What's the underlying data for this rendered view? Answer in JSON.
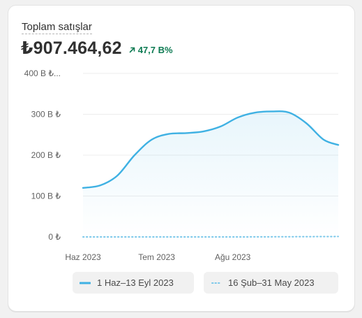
{
  "card": {
    "title": "Toplam satışlar",
    "total": "₺907.464,62",
    "delta": "47,7 B%",
    "delta_icon": "arrow-up-right-icon",
    "accent_color": "#3fb1e3",
    "delta_color": "#0c7a52"
  },
  "chart_data": {
    "type": "area",
    "title": "",
    "xlabel": "",
    "ylabel": "",
    "ylim": [
      0,
      400
    ],
    "y_ticks": [
      "0 ₺",
      "100 B ₺",
      "200 B ₺",
      "300 B ₺",
      "400 B ₺..."
    ],
    "x_ticks": [
      "Haz 2023",
      "Tem 2023",
      "Ağu 2023"
    ],
    "grid": true,
    "legend_position": "bottom",
    "series": [
      {
        "name": "1 Haz–13 Eyl 2023",
        "style": "solid",
        "x": [
          "2023-06-01",
          "2023-06-08",
          "2023-06-15",
          "2023-06-22",
          "2023-06-29",
          "2023-07-06",
          "2023-07-13",
          "2023-07-20",
          "2023-07-27",
          "2023-08-03",
          "2023-08-10",
          "2023-08-17",
          "2023-08-24",
          "2023-08-31",
          "2023-09-07",
          "2023-09-13"
        ],
        "values": [
          120,
          126,
          150,
          200,
          238,
          252,
          254,
          258,
          270,
          292,
          304,
          307,
          304,
          278,
          238,
          225
        ]
      },
      {
        "name": "16 Şub–31 May 2023",
        "style": "dotted",
        "x": [
          "2023-06-01",
          "2023-07-01",
          "2023-08-01",
          "2023-09-13"
        ],
        "values": [
          0,
          0,
          0,
          1
        ]
      }
    ]
  }
}
